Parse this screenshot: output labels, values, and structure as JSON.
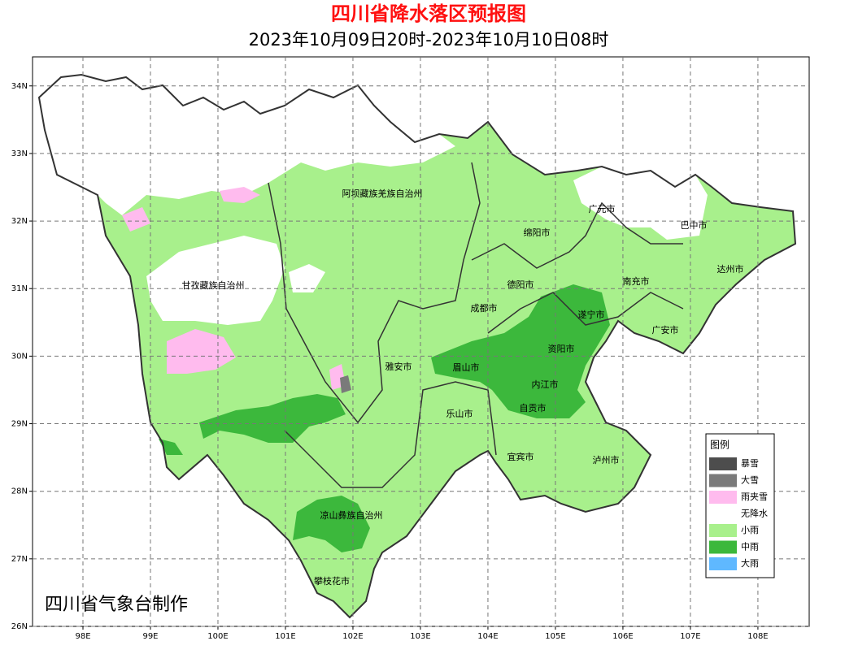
{
  "header": {
    "title": "四川省降水落区预报图",
    "subtitle": "2023年10月09日20时-2023年10月10日08时"
  },
  "map": {
    "xlim": [
      97.253,
      108.76
    ],
    "ylim": [
      26,
      34.43
    ],
    "grid": true,
    "xticks": [
      {
        "value": 98,
        "label": "98E"
      },
      {
        "value": 99,
        "label": "99E"
      },
      {
        "value": 100,
        "label": "100E"
      },
      {
        "value": 101,
        "label": "101E"
      },
      {
        "value": 102,
        "label": "102E"
      },
      {
        "value": 103,
        "label": "103E"
      },
      {
        "value": 104,
        "label": "104E"
      },
      {
        "value": 105,
        "label": "105E"
      },
      {
        "value": 106,
        "label": "106E"
      },
      {
        "value": 107,
        "label": "107E"
      },
      {
        "value": 108,
        "label": "108E"
      }
    ],
    "yticks": [
      {
        "value": 26,
        "label": "26N"
      },
      {
        "value": 27,
        "label": "27N"
      },
      {
        "value": 28,
        "label": "28N"
      },
      {
        "value": 29,
        "label": "29N"
      },
      {
        "value": 30,
        "label": "30N"
      },
      {
        "value": 31,
        "label": "31N"
      },
      {
        "value": 32,
        "label": "32N"
      },
      {
        "value": 33,
        "label": "33N"
      },
      {
        "value": 34,
        "label": "34N"
      }
    ],
    "regions": [
      "阿坝藏族羌族自治州",
      "广元市",
      "巴中市",
      "绵阳市",
      "达州市",
      "甘孜藏族自治州",
      "德阳市",
      "南充市",
      "成都市",
      "遂宁市",
      "广安市",
      "资阳市",
      "雅安市",
      "眉山市",
      "内江市",
      "自贡市",
      "乐山市",
      "宜宾市",
      "泸州市",
      "凉山彝族自治州",
      "攀枝花市"
    ]
  },
  "legend": {
    "title": "图例",
    "items": [
      {
        "name": "暴雪",
        "color": "#4d4d4d"
      },
      {
        "name": "大雪",
        "color": "#7a7a7a"
      },
      {
        "name": "雨夹雪",
        "color": "#ffbbee"
      },
      {
        "name": "无降水",
        "color": "#ffffff"
      },
      {
        "name": "小雨",
        "color": "#a8f08c"
      },
      {
        "name": "中雨",
        "color": "#3cb83c"
      },
      {
        "name": "大雨",
        "color": "#5fb8ff"
      }
    ]
  },
  "credit": "四川省气象台制作"
}
